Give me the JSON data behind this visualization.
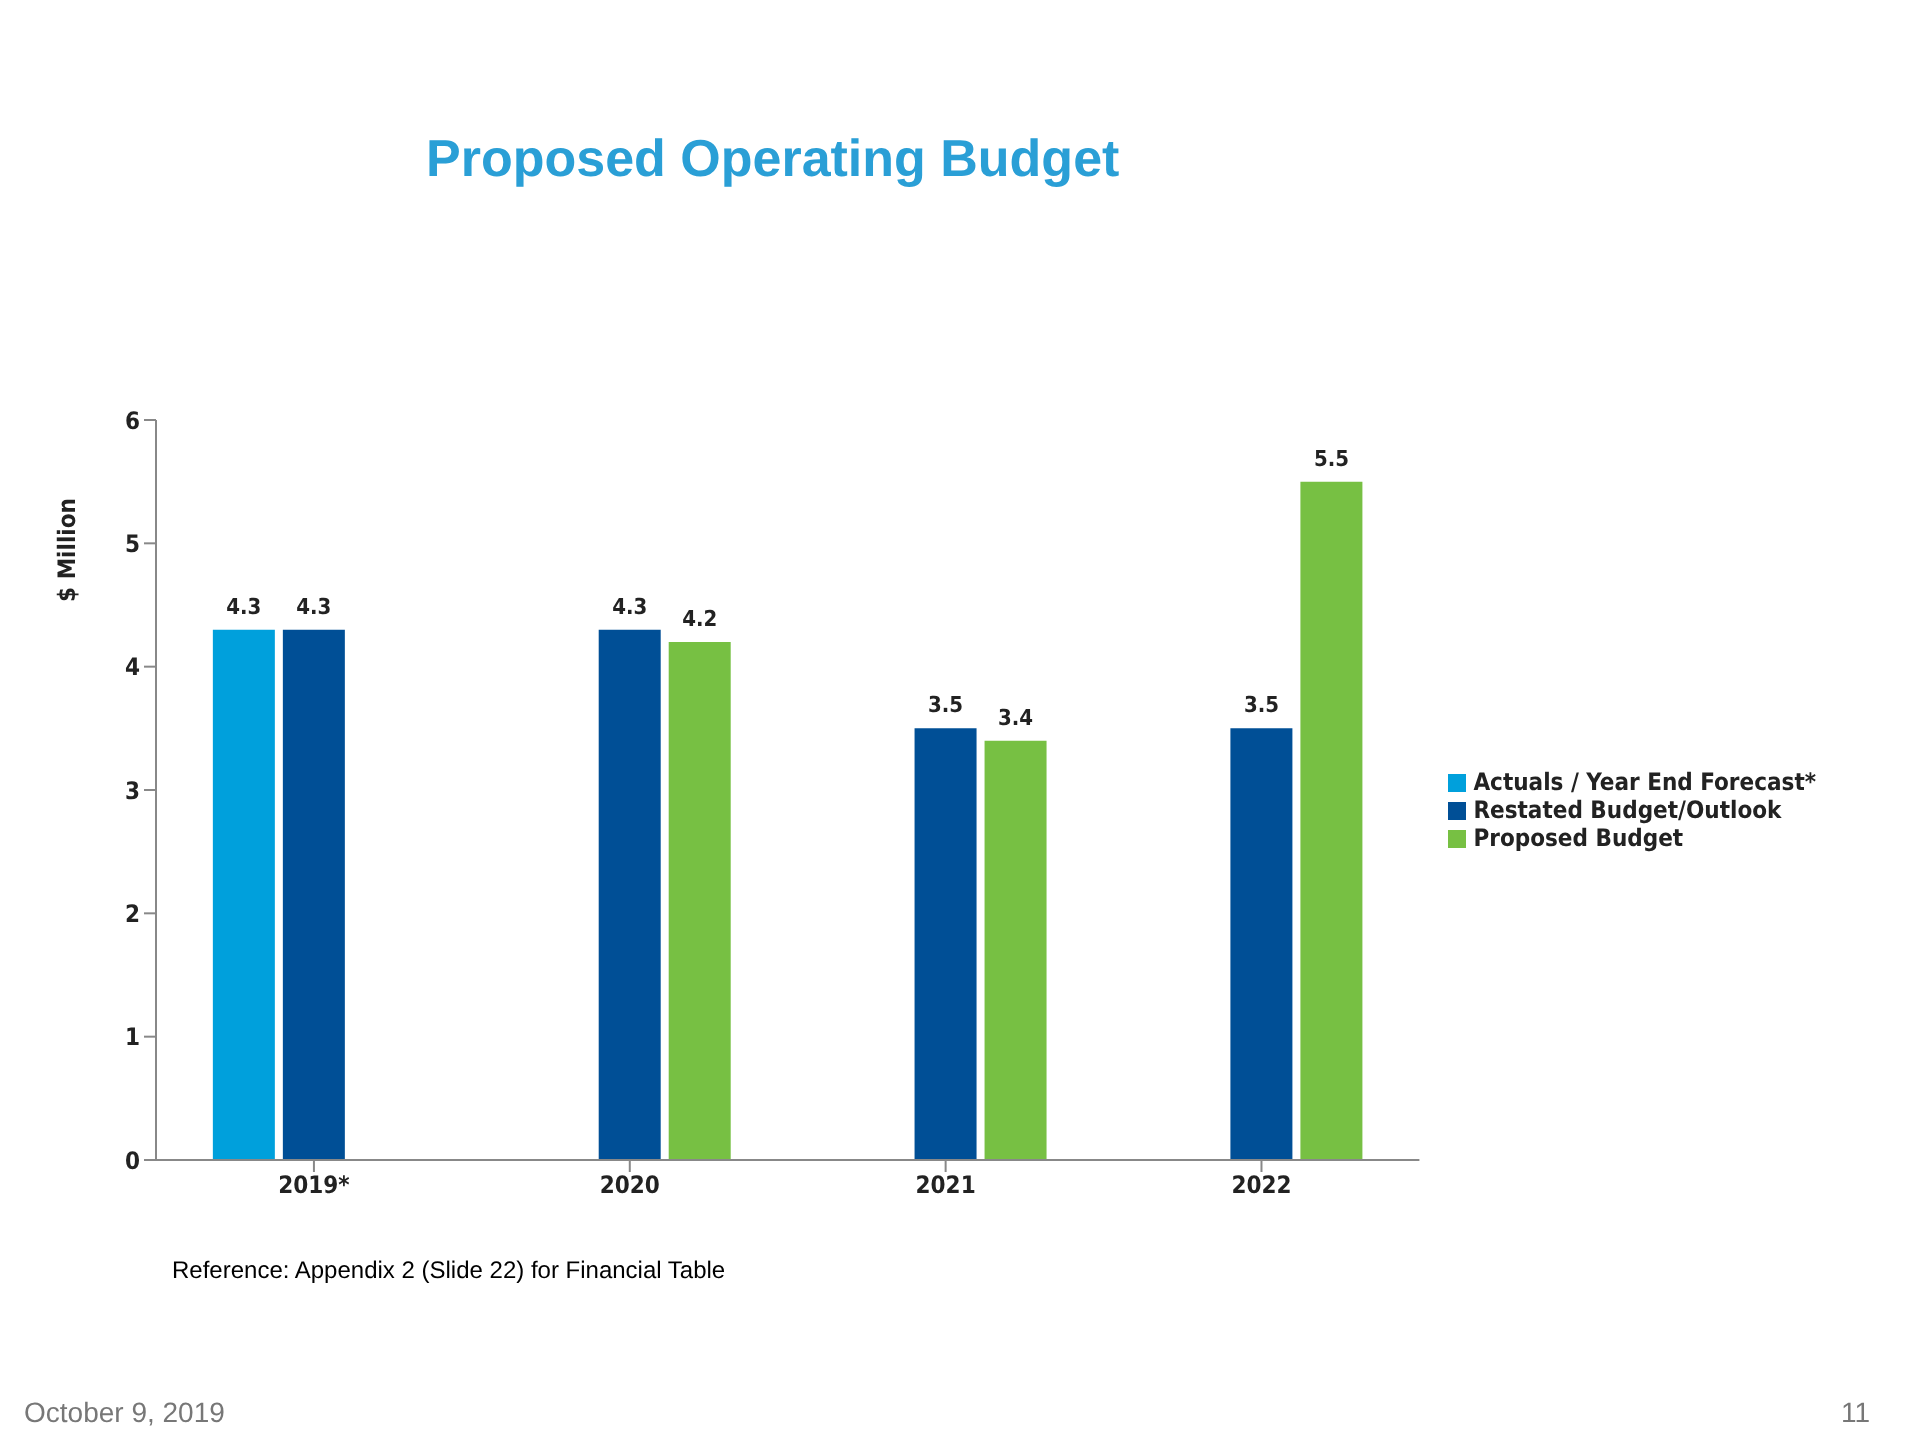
{
  "chart_data": {
    "type": "bar",
    "title": "Proposed Operating Budget",
    "ylabel": "$ Million",
    "categories": [
      "2019*",
      "2020",
      "2021",
      "2022"
    ],
    "series": [
      {
        "name": "Actuals / Year End Forecast*",
        "color": "#00a0dc",
        "values": [
          4.3,
          null,
          null,
          null
        ]
      },
      {
        "name": "Restated Budget/Outlook",
        "color": "#004f96",
        "values": [
          4.3,
          4.3,
          3.5,
          3.5
        ]
      },
      {
        "name": "Proposed Budget",
        "color": "#77c043",
        "values": [
          null,
          4.2,
          3.4,
          5.5
        ]
      }
    ],
    "ylim": [
      0,
      6
    ],
    "yticks": [
      0,
      1,
      2,
      3,
      4,
      5,
      6
    ],
    "grid": false,
    "legend": "right",
    "data_labels": true,
    "annotations": [
      "Reference: Appendix 2 (Slide 22) for Financial Table",
      "October 9, 2019",
      "11"
    ]
  }
}
